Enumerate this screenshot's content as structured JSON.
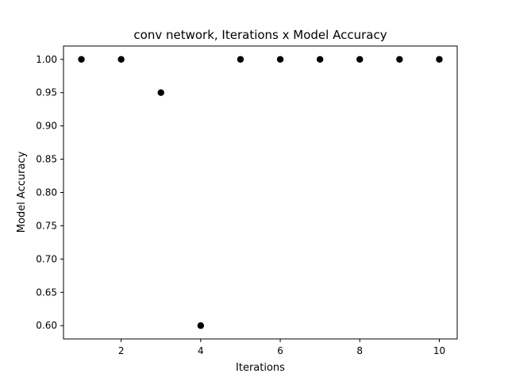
{
  "chart_data": {
    "type": "scatter",
    "title": "conv network, Iterations x Model Accuracy",
    "xlabel": "Iterations",
    "ylabel": "Model Accuracy",
    "x": [
      1,
      2,
      3,
      4,
      5,
      6,
      7,
      8,
      9,
      10
    ],
    "y": [
      1.0,
      1.0,
      0.95,
      0.6,
      1.0,
      1.0,
      1.0,
      1.0,
      1.0,
      1.0
    ],
    "xlim": [
      0.55,
      10.45
    ],
    "ylim": [
      0.58,
      1.02
    ],
    "xticks": [
      2,
      4,
      6,
      8,
      10
    ],
    "xtick_labels": [
      "2",
      "4",
      "6",
      "8",
      "10"
    ],
    "yticks": [
      0.6,
      0.65,
      0.7,
      0.75,
      0.8,
      0.85,
      0.9,
      0.95,
      1.0
    ],
    "ytick_labels": [
      "0.60",
      "0.65",
      "0.70",
      "0.75",
      "0.80",
      "0.85",
      "0.90",
      "0.95",
      "1.00"
    ],
    "grid": false,
    "marker_color": "#000000"
  }
}
